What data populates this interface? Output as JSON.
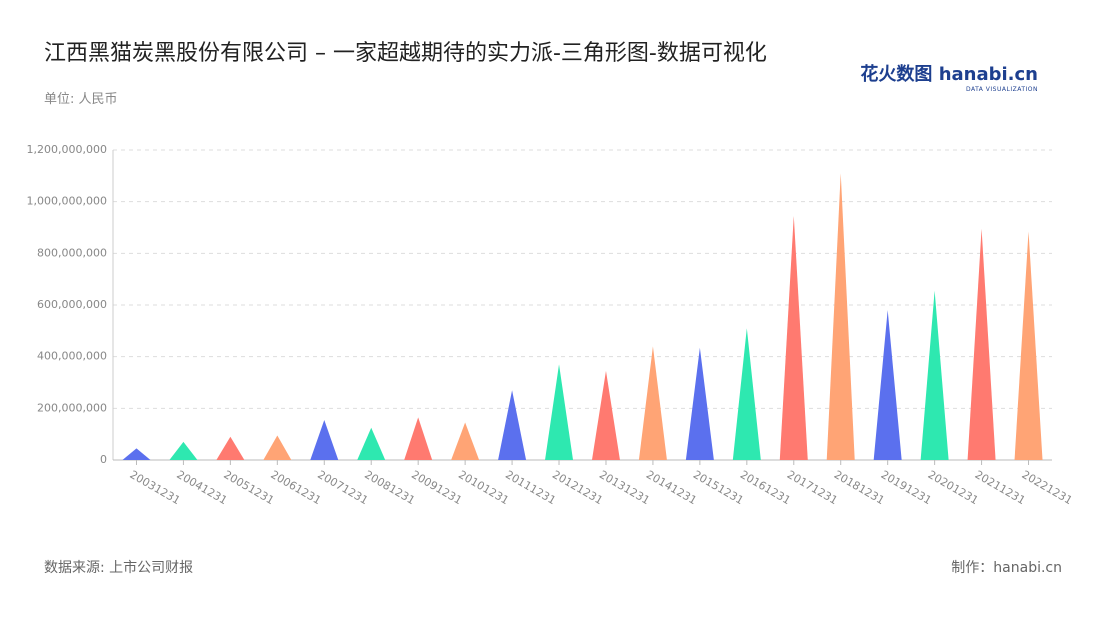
{
  "chart_data": {
    "type": "triangle",
    "title": "江西黑猫炭黑股份有限公司 – 一家超越期待的实力派-三角形图-数据可视化",
    "subtitle": "单位: 人民币",
    "source": "数据来源: 上市公司财报",
    "credit": "制作：hanabi.cn",
    "logo": {
      "name": "花火数图 hanabi.cn",
      "tagline": "DATA VISUALIZATION"
    },
    "categories": [
      "20031231",
      "20041231",
      "20051231",
      "20061231",
      "20071231",
      "20081231",
      "20091231",
      "20101231",
      "20111231",
      "20121231",
      "20131231",
      "20141231",
      "20151231",
      "20161231",
      "20171231",
      "20181231",
      "20191231",
      "20201231",
      "20211231",
      "20221231"
    ],
    "values": [
      45000000,
      70000000,
      90000000,
      95000000,
      155000000,
      125000000,
      165000000,
      145000000,
      270000000,
      370000000,
      345000000,
      440000000,
      435000000,
      510000000,
      945000000,
      1110000000,
      580000000,
      655000000,
      895000000,
      885000000
    ],
    "colors": [
      "#5b70ee",
      "#2ee8b0",
      "#ff7a70",
      "#ffa475"
    ],
    "ylim": [
      0,
      1200000000
    ],
    "yticks": [
      0,
      {
        "value": 200000000,
        "label": "200,000,000"
      },
      {
        "value": 400000000,
        "label": "400,000,000"
      },
      {
        "value": 600000000,
        "label": "600,000,000"
      },
      {
        "value": 800000000,
        "label": "800,000,000"
      },
      {
        "value": 1000000000,
        "label": "1,000,000,000"
      },
      {
        "value": 1200000000,
        "label": "1,200,000,000"
      }
    ],
    "grid": true
  }
}
